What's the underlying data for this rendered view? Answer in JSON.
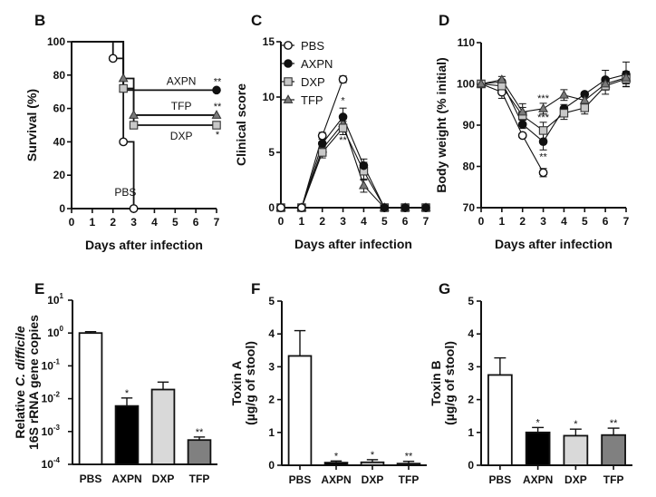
{
  "figure": {
    "panel_labels": [
      "B",
      "C",
      "D",
      "E",
      "F",
      "G"
    ]
  },
  "chart_data": [
    {
      "panel": "B",
      "type": "line",
      "subtype": "kaplan-meier",
      "title": "",
      "xlabel": "Days after infection",
      "ylabel": "Survival (%)",
      "xlim": [
        0,
        7
      ],
      "ylim": [
        0,
        100
      ],
      "xticks": [
        "0",
        "1",
        "2",
        "3",
        "4",
        "5",
        "6",
        "7"
      ],
      "yticks": [
        "0",
        "20",
        "40",
        "60",
        "80",
        "100"
      ],
      "series": [
        {
          "name": "PBS",
          "label": "PBS",
          "marker": "circle-open",
          "color": "#ffffff",
          "steps": [
            [
              0,
              100
            ],
            [
              2,
              100
            ],
            [
              2,
              90
            ],
            [
              2.5,
              90
            ],
            [
              2.5,
              40
            ],
            [
              3,
              40
            ],
            [
              3,
              0
            ]
          ],
          "markers": [
            [
              2,
              90
            ],
            [
              2.5,
              40
            ],
            [
              3,
              0
            ]
          ],
          "significance": ""
        },
        {
          "name": "AXPN",
          "label": "AXPN",
          "marker": "circle-filled",
          "color": "#111111",
          "steps": [
            [
              0,
              100
            ],
            [
              2.5,
              100
            ],
            [
              2.5,
              71
            ],
            [
              7,
              71
            ]
          ],
          "markers": [
            [
              7,
              71
            ]
          ],
          "significance": "**"
        },
        {
          "name": "TFP",
          "label": "TFP",
          "marker": "triangle",
          "color": "#777777",
          "steps": [
            [
              0,
              100
            ],
            [
              2.5,
              100
            ],
            [
              2.5,
              78
            ],
            [
              3,
              78
            ],
            [
              3,
              56
            ],
            [
              7,
              56
            ]
          ],
          "markers": [
            [
              2.5,
              78
            ],
            [
              3,
              56
            ],
            [
              7,
              56
            ]
          ],
          "significance": "**"
        },
        {
          "name": "DXP",
          "label": "DXP",
          "marker": "square",
          "color": "#c8c8c8",
          "steps": [
            [
              0,
              100
            ],
            [
              2.5,
              100
            ],
            [
              2.5,
              72
            ],
            [
              3,
              72
            ],
            [
              3,
              50
            ],
            [
              7,
              50
            ]
          ],
          "markers": [
            [
              2.5,
              72
            ],
            [
              3,
              50
            ],
            [
              7,
              50
            ]
          ],
          "significance": "*"
        }
      ]
    },
    {
      "panel": "C",
      "type": "line",
      "title": "",
      "xlabel": "Days after infection",
      "ylabel": "Clinical score",
      "xlim": [
        0,
        7
      ],
      "ylim": [
        0,
        15
      ],
      "xticks": [
        "0",
        "1",
        "2",
        "3",
        "4",
        "5",
        "6",
        "7"
      ],
      "yticks": [
        "0",
        "5",
        "10",
        "15"
      ],
      "legend": {
        "position": "top-left",
        "entries": [
          "PBS",
          "AXPN",
          "DXP",
          "TFP"
        ]
      },
      "x": [
        0,
        1,
        2,
        3,
        4,
        5,
        6,
        7
      ],
      "series": [
        {
          "name": "PBS",
          "marker": "circle-open",
          "color": "#ffffff",
          "values": [
            0,
            0,
            6.5,
            11.6,
            null,
            null,
            null,
            null
          ],
          "errors": [
            0,
            0,
            0.3,
            0.3,
            null,
            null,
            null,
            null
          ]
        },
        {
          "name": "AXPN",
          "marker": "circle-filled",
          "color": "#111111",
          "values": [
            0,
            0,
            5.8,
            8.2,
            3.8,
            0,
            0,
            0
          ],
          "errors": [
            0,
            0,
            0.4,
            0.8,
            0.6,
            0,
            0,
            0
          ]
        },
        {
          "name": "DXP",
          "marker": "square",
          "color": "#c8c8c8",
          "values": [
            0,
            0,
            5.0,
            7.2,
            3.3,
            0,
            0,
            0
          ],
          "errors": [
            0,
            0,
            0.5,
            0.6,
            0.8,
            0,
            0,
            0
          ]
        },
        {
          "name": "TFP",
          "marker": "triangle",
          "color": "#777777",
          "values": [
            0,
            0,
            5.3,
            7.6,
            2.0,
            0,
            0,
            0
          ],
          "errors": [
            0,
            0,
            0.5,
            0.7,
            0.6,
            0,
            0,
            0
          ]
        }
      ],
      "annotations": [
        {
          "x": 3,
          "above": "*",
          "below": "**"
        }
      ]
    },
    {
      "panel": "D",
      "type": "line",
      "title": "",
      "xlabel": "Days after infection",
      "ylabel": "Body weight (% initial)",
      "xlim": [
        0,
        7
      ],
      "ylim": [
        70,
        110
      ],
      "xticks": [
        "0",
        "1",
        "2",
        "3",
        "4",
        "5",
        "6",
        "7"
      ],
      "yticks": [
        "70",
        "80",
        "90",
        "100",
        "110"
      ],
      "x": [
        0,
        1,
        2,
        3,
        4,
        5,
        6,
        7
      ],
      "series": [
        {
          "name": "PBS",
          "marker": "circle-open",
          "color": "#ffffff",
          "values": [
            100,
            98,
            87.5,
            78.5,
            null,
            null,
            null,
            null
          ],
          "errors": [
            0,
            1.5,
            0.5,
            1,
            null,
            null,
            null,
            null
          ]
        },
        {
          "name": "AXPN",
          "marker": "circle-filled",
          "color": "#111111",
          "values": [
            100,
            100.5,
            90.2,
            86,
            94,
            97.5,
            101,
            102.3
          ],
          "errors": [
            0,
            0.5,
            1,
            2,
            1,
            0.5,
            2.3,
            3
          ]
        },
        {
          "name": "DXP",
          "marker": "square",
          "color": "#c8c8c8",
          "values": [
            100,
            99.5,
            92.3,
            88.7,
            92.9,
            94.2,
            99.5,
            101.2
          ],
          "errors": [
            0,
            0.8,
            2,
            2,
            1.5,
            1.5,
            2,
            1.8
          ]
        },
        {
          "name": "TFP",
          "marker": "triangle",
          "color": "#777777",
          "values": [
            100,
            101,
            93.2,
            94,
            97.3,
            96,
            100,
            101.5
          ],
          "errors": [
            0,
            0.8,
            2,
            1.3,
            1.3,
            1.3,
            1.5,
            1.5
          ]
        }
      ],
      "annotations": [
        {
          "x": 3,
          "series": "TFP",
          "text": "***",
          "position": "above"
        },
        {
          "x": 3,
          "series": "DXP",
          "text": "***",
          "position": "above"
        },
        {
          "x": 3,
          "series": "AXPN",
          "text": "**",
          "position": "below"
        }
      ]
    },
    {
      "panel": "E",
      "type": "bar",
      "scale": "log",
      "title": "",
      "xlabel": "",
      "ylabel_line1": "Relative C. difficile",
      "ylabel_line2": "16S rRNA gene copies",
      "ylim": [
        0.0001,
        10
      ],
      "yticks": [
        {
          "base": "10",
          "exp": "1"
        },
        {
          "base": "10",
          "exp": "0"
        },
        {
          "base": "10",
          "exp": "-1"
        },
        {
          "base": "10",
          "exp": "-2"
        },
        {
          "base": "10",
          "exp": "-3"
        },
        {
          "base": "10",
          "exp": "-4"
        }
      ],
      "categories": [
        "PBS",
        "AXPN",
        "DXP",
        "TFP"
      ],
      "values": [
        1.0,
        0.006,
        0.019,
        0.00055
      ],
      "errors_upper": [
        1.1,
        0.0105,
        0.032,
        0.00068
      ],
      "colors": [
        "#ffffff",
        "#000000",
        "#d9d9d9",
        "#808080"
      ],
      "significance": [
        "",
        "*",
        "",
        "**"
      ]
    },
    {
      "panel": "F",
      "type": "bar",
      "title": "",
      "xlabel": "",
      "ylabel_line1": "Toxin A",
      "ylabel_line2": "(µg/g of stool)",
      "ylim": [
        0,
        5
      ],
      "yticks": [
        "0",
        "1",
        "2",
        "3",
        "4",
        "5"
      ],
      "categories": [
        "PBS",
        "AXPN",
        "DXP",
        "TFP"
      ],
      "values": [
        3.33,
        0.08,
        0.09,
        0.05
      ],
      "errors_upper": [
        4.1,
        0.13,
        0.17,
        0.12
      ],
      "colors": [
        "#ffffff",
        "#000000",
        "#d9d9d9",
        "#808080"
      ],
      "significance": [
        "",
        "*",
        "*",
        "**"
      ]
    },
    {
      "panel": "G",
      "type": "bar",
      "title": "",
      "xlabel": "",
      "ylabel_line1": "Toxin B",
      "ylabel_line2": "(µg/g of stool)",
      "ylim": [
        0,
        5
      ],
      "yticks": [
        "0",
        "1",
        "2",
        "3",
        "4",
        "5"
      ],
      "categories": [
        "PBS",
        "AXPN",
        "DXP",
        "TFP"
      ],
      "values": [
        2.75,
        1.0,
        0.9,
        0.92
      ],
      "errors_upper": [
        3.27,
        1.15,
        1.1,
        1.13
      ],
      "colors": [
        "#ffffff",
        "#000000",
        "#d9d9d9",
        "#808080"
      ],
      "significance": [
        "",
        "*",
        "*",
        "**"
      ]
    }
  ]
}
